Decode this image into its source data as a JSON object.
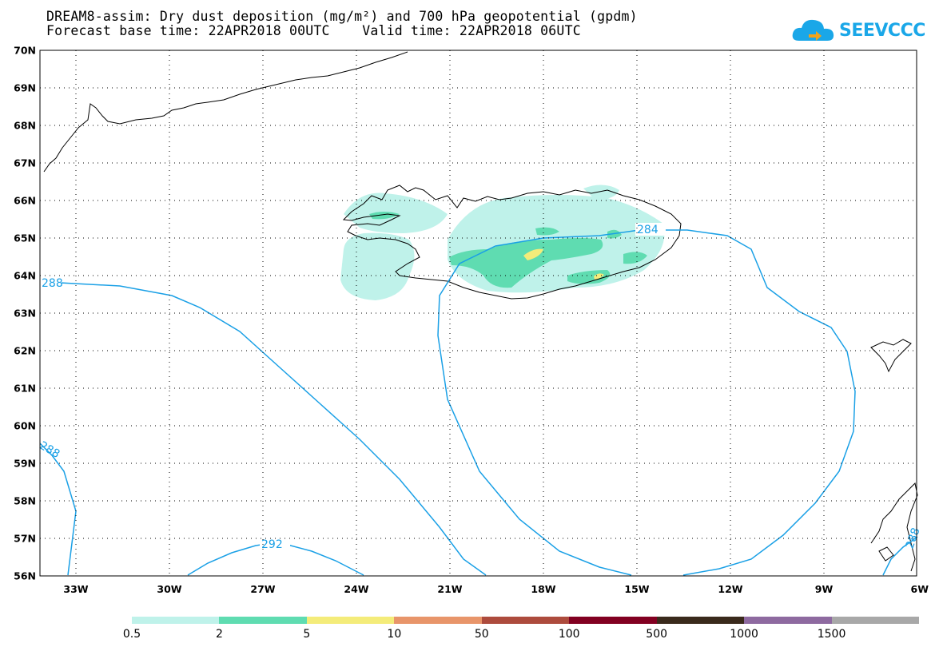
{
  "title": {
    "line1": "DREAM8-assim: Dry dust deposition (mg/m²) and 700 hPa geopotential (gpdm)",
    "line2": "Forecast base time: 22APR2018 00UTC    Valid time: 22APR2018 06UTC"
  },
  "logo": {
    "text": "SEEVCCC",
    "icon": "cloud-arrow-icon",
    "color": "#1aa7e8"
  },
  "map": {
    "lon_labels": [
      "33W",
      "30W",
      "27W",
      "24W",
      "21W",
      "18W",
      "15W",
      "12W",
      "9W",
      "6W"
    ],
    "lat_labels": [
      "70N",
      "69N",
      "68N",
      "67N",
      "66N",
      "65N",
      "64N",
      "63N",
      "62N",
      "61N",
      "60N",
      "59N",
      "58N",
      "57N",
      "56N"
    ],
    "contour_labels": [
      "288",
      "288",
      "292",
      "284",
      "288"
    ],
    "contour_color": "#1aa0e6"
  },
  "legend": {
    "colors": [
      "#bff2ea",
      "#5fdcb1",
      "#f4ec7a",
      "#e8956a",
      "#ad4b3d",
      "#820021",
      "#3a2a1c",
      "#8e6aa0",
      "#a8a8a8"
    ],
    "labels": [
      "0.5",
      "2",
      "5",
      "10",
      "50",
      "100",
      "500",
      "1000",
      "1500"
    ]
  }
}
